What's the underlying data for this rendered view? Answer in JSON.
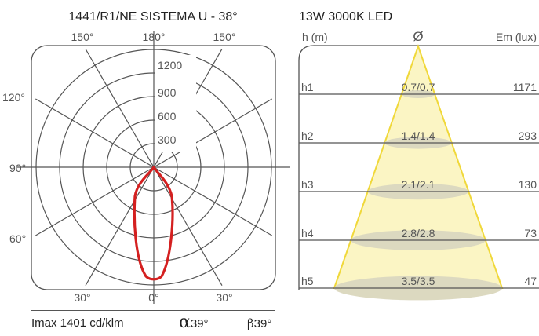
{
  "polar": {
    "title": "1441/R1/NE  SISTEMA U - 38°",
    "angle_labels": {
      "top_left": "150°",
      "top_center": "180°",
      "top_right": "150°",
      "left_upper": "120°",
      "left_middle": "90°",
      "left_lower": "60°",
      "bottom_left": "30°",
      "bottom_center": "0°",
      "bottom_right": "30°"
    },
    "ring_labels": [
      "300",
      "600",
      "900",
      "1200"
    ],
    "curve_color": "#d42020"
  },
  "cone": {
    "title": "13W  3000K  LED",
    "col_height": "h (m)",
    "col_diameter_symbol": "Ø",
    "col_illuminance": "Em (lux)",
    "rows": [
      {
        "h": "h1",
        "diameter": "0.7/0.7",
        "lux": "1171"
      },
      {
        "h": "h2",
        "diameter": "1.4/1.4",
        "lux": "293"
      },
      {
        "h": "h3",
        "diameter": "2.1/2.1",
        "lux": "130"
      },
      {
        "h": "h4",
        "diameter": "2.8/2.8",
        "lux": "73"
      },
      {
        "h": "h5",
        "diameter": "3.5/3.5",
        "lux": "47"
      }
    ],
    "beam_fill": "#fbf5c4",
    "beam_stroke": "#f0d83a"
  },
  "footer": {
    "imax": "Imax 1401 cd/klm",
    "alpha_symbol": "α",
    "alpha_value": "39°",
    "beta_symbol": "β",
    "beta_value": "39°"
  }
}
